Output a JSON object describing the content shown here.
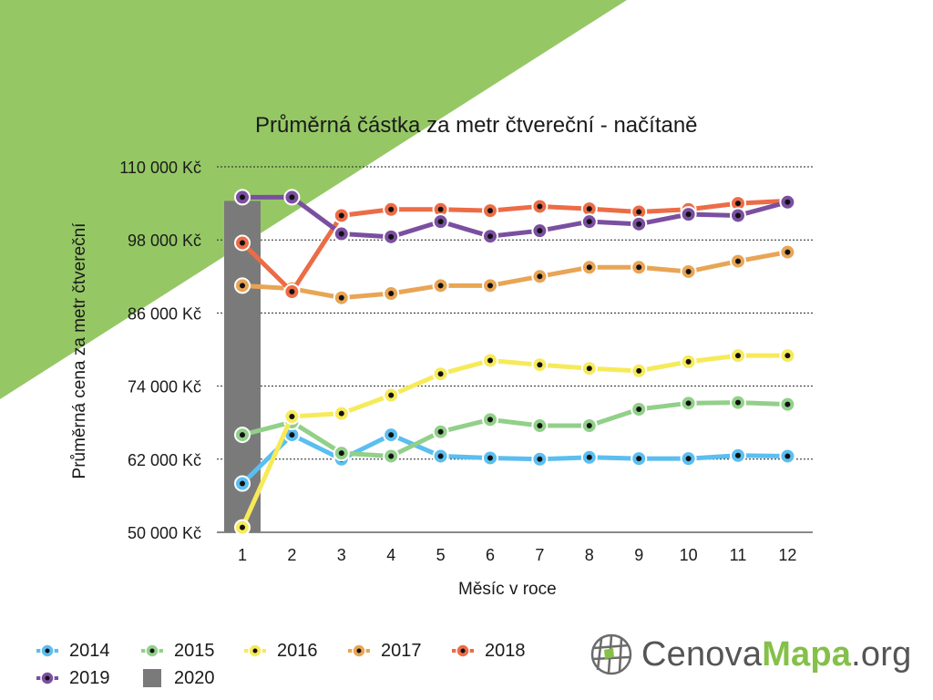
{
  "colors": {
    "background_triangle": "#95c865",
    "s2014": "#5bbef0",
    "s2015": "#92d08a",
    "s2016": "#f7ea5a",
    "s2017": "#e8a555",
    "s2018": "#ec6c46",
    "s2019": "#7a4fa0",
    "s2020": "#7a7a7a",
    "grid": "#222222",
    "axis": "#444444"
  },
  "chart_data": {
    "type": "line",
    "title": "Průměrná částka za metr čtvereční - načítaně",
    "xlabel": "Měsíc v roce",
    "ylabel": "Průměrná cena za metr čtvereční",
    "x": [
      1,
      2,
      3,
      4,
      5,
      6,
      7,
      8,
      9,
      10,
      11,
      12
    ],
    "x_tick_labels": [
      "1",
      "2",
      "3",
      "4",
      "5",
      "6",
      "7",
      "8",
      "9",
      "10",
      "11",
      "12"
    ],
    "ylim": [
      50000,
      110000
    ],
    "y_ticks": [
      50000,
      62000,
      74000,
      86000,
      98000,
      110000
    ],
    "y_tick_labels": [
      "50 000 Kč",
      "62 000 Kč",
      "74 000 Kč",
      "86 000 Kč",
      "98 000 Kč",
      "110 000 Kč"
    ],
    "grid": "horizontal dotted",
    "legend_position": "bottom-left",
    "series": [
      {
        "name": "2014",
        "color_key": "s2014",
        "values": [
          58000,
          66000,
          62000,
          66000,
          62500,
          62200,
          62000,
          62300,
          62100,
          62100,
          62600,
          62500
        ]
      },
      {
        "name": "2015",
        "color_key": "s2015",
        "values": [
          66000,
          68100,
          63000,
          62500,
          66500,
          68500,
          67500,
          67500,
          70200,
          71200,
          71300,
          71000
        ]
      },
      {
        "name": "2016",
        "color_key": "s2016",
        "values": [
          50800,
          69000,
          69500,
          72500,
          76000,
          78200,
          77500,
          76900,
          76500,
          78000,
          79000,
          79000
        ]
      },
      {
        "name": "2017",
        "color_key": "s2017",
        "values": [
          90500,
          90000,
          88500,
          89200,
          90500,
          90500,
          92000,
          93500,
          93500,
          92800,
          94500,
          96000
        ]
      },
      {
        "name": "2018",
        "color_key": "s2018",
        "values": [
          97500,
          89500,
          102000,
          103000,
          103000,
          102800,
          103500,
          103100,
          102600,
          103000,
          104000,
          104400
        ]
      },
      {
        "name": "2019",
        "color_key": "s2019",
        "values": [
          105000,
          105000,
          99000,
          98500,
          101000,
          98600,
          99500,
          101000,
          100600,
          102200,
          102000,
          104200
        ]
      },
      {
        "name": "2020",
        "color_key": "s2020",
        "type": "bar",
        "values": [
          104400,
          null,
          null,
          null,
          null,
          null,
          null,
          null,
          null,
          null,
          null,
          null
        ]
      }
    ]
  },
  "legend": {
    "items": [
      {
        "label": "2014",
        "color_key": "s2014",
        "kind": "line"
      },
      {
        "label": "2015",
        "color_key": "s2015",
        "kind": "line"
      },
      {
        "label": "2016",
        "color_key": "s2016",
        "kind": "line"
      },
      {
        "label": "2017",
        "color_key": "s2017",
        "kind": "line"
      },
      {
        "label": "2018",
        "color_key": "s2018",
        "kind": "line"
      },
      {
        "label": "2019",
        "color_key": "s2019",
        "kind": "line"
      },
      {
        "label": "2020",
        "color_key": "s2020",
        "kind": "bar"
      }
    ]
  },
  "logo": {
    "prefix": "Cenova",
    "accent": "Mapa",
    "suffix": ".org",
    "icon": "globe-grid-icon"
  }
}
